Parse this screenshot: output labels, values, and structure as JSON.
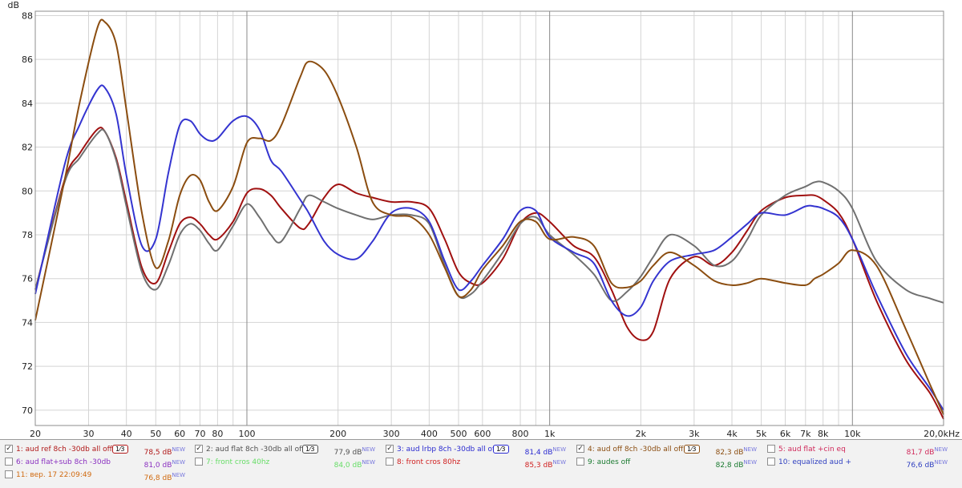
{
  "chart_data": {
    "type": "line",
    "ylabel": "dB",
    "x_scale": "log",
    "xlim": [
      20,
      20000
    ],
    "ylim": [
      69.3,
      88.2
    ],
    "grid": true,
    "y_ticks": [
      70,
      72,
      74,
      76,
      78,
      80,
      82,
      84,
      86,
      88
    ],
    "x_ticks": [
      {
        "value": 20,
        "label": "20"
      },
      {
        "value": 30,
        "label": "30"
      },
      {
        "value": 40,
        "label": "40"
      },
      {
        "value": 50,
        "label": "50"
      },
      {
        "value": 60,
        "label": "60"
      },
      {
        "value": 70,
        "label": "70"
      },
      {
        "value": 80,
        "label": "80"
      },
      {
        "value": 100,
        "label": "100"
      },
      {
        "value": 200,
        "label": "200"
      },
      {
        "value": 300,
        "label": "300"
      },
      {
        "value": 400,
        "label": "400"
      },
      {
        "value": 500,
        "label": "500"
      },
      {
        "value": 600,
        "label": "600"
      },
      {
        "value": 800,
        "label": "800"
      },
      {
        "value": 1000,
        "label": "1k"
      },
      {
        "value": 2000,
        "label": "2k"
      },
      {
        "value": 3000,
        "label": "3k"
      },
      {
        "value": 4000,
        "label": "4k"
      },
      {
        "value": 5000,
        "label": "5k"
      },
      {
        "value": 6000,
        "label": "6k"
      },
      {
        "value": 7000,
        "label": "7k"
      },
      {
        "value": 8000,
        "label": "8k"
      },
      {
        "value": 10000,
        "label": "10k"
      },
      {
        "value": 20000,
        "label": "20,0kHz"
      }
    ],
    "x_minor_ticks": [
      90,
      900,
      9000
    ],
    "x_major_lines": [
      100,
      1000,
      10000
    ],
    "series": [
      {
        "name": "1: aud ref 8ch -30db all off",
        "color": "#a01010",
        "x": [
          20,
          25,
          28,
          32,
          34,
          37,
          40,
          45,
          50,
          55,
          60,
          65,
          70,
          75,
          80,
          90,
          100,
          110,
          120,
          130,
          150,
          160,
          180,
          200,
          230,
          260,
          300,
          350,
          400,
          450,
          500,
          550,
          600,
          700,
          800,
          900,
          1000,
          1200,
          1400,
          1600,
          1800,
          2000,
          2200,
          2500,
          3000,
          3500,
          4000,
          4500,
          5000,
          6000,
          7000,
          7500,
          8000,
          9000,
          10000,
          12000,
          15000,
          18000,
          20000
        ],
        "y": [
          75.5,
          80.5,
          81.7,
          82.8,
          82.7,
          81.5,
          79.5,
          76.5,
          75.8,
          77.2,
          78.5,
          78.8,
          78.5,
          78.0,
          77.8,
          78.6,
          79.9,
          80.1,
          79.8,
          79.2,
          78.3,
          78.5,
          79.7,
          80.3,
          79.9,
          79.7,
          79.5,
          79.5,
          79.2,
          77.8,
          76.3,
          75.8,
          75.8,
          76.9,
          78.5,
          79.0,
          78.6,
          77.5,
          77.0,
          75.5,
          73.8,
          73.2,
          73.6,
          76.0,
          77.0,
          76.6,
          77.2,
          78.2,
          79.1,
          79.7,
          79.8,
          79.8,
          79.6,
          79.0,
          77.8,
          75.0,
          72.3,
          70.8,
          69.6
        ]
      },
      {
        "name": "2: aud flat 8ch -30db all off",
        "color": "#707070",
        "x": [
          20,
          25,
          28,
          32,
          34,
          37,
          40,
          45,
          50,
          55,
          60,
          65,
          70,
          75,
          80,
          90,
          100,
          110,
          120,
          130,
          150,
          160,
          180,
          200,
          230,
          260,
          300,
          350,
          400,
          450,
          500,
          550,
          600,
          700,
          800,
          900,
          1000,
          1200,
          1400,
          1600,
          1800,
          2000,
          2200,
          2500,
          3000,
          3500,
          4000,
          4500,
          5000,
          6000,
          7000,
          7500,
          8000,
          9000,
          10000,
          12000,
          15000,
          18000,
          20000
        ],
        "y": [
          75.5,
          80.4,
          81.5,
          82.6,
          82.7,
          81.4,
          79.3,
          76.3,
          75.5,
          76.6,
          78.0,
          78.5,
          78.2,
          77.6,
          77.3,
          78.4,
          79.4,
          78.8,
          78.0,
          77.7,
          79.2,
          79.8,
          79.5,
          79.2,
          78.9,
          78.7,
          78.9,
          78.9,
          78.5,
          76.6,
          75.2,
          75.3,
          75.9,
          77.2,
          78.5,
          78.8,
          78.0,
          77.1,
          76.2,
          75.0,
          75.4,
          76.1,
          77.0,
          78.0,
          77.5,
          76.6,
          76.8,
          77.8,
          78.9,
          79.8,
          80.2,
          80.4,
          80.4,
          80.0,
          79.2,
          76.8,
          75.5,
          75.1,
          74.9
        ]
      },
      {
        "name": "3: aud lrbp 8ch -30db all of",
        "color": "#3434d0",
        "x": [
          20,
          25,
          28,
          32,
          34,
          37,
          40,
          45,
          50,
          55,
          60,
          65,
          70,
          75,
          80,
          90,
          100,
          110,
          120,
          130,
          150,
          160,
          180,
          200,
          230,
          260,
          300,
          350,
          400,
          450,
          500,
          550,
          600,
          700,
          800,
          900,
          1000,
          1200,
          1400,
          1600,
          1800,
          2000,
          2200,
          2500,
          3000,
          3500,
          4000,
          4500,
          5000,
          6000,
          7000,
          7500,
          8000,
          9000,
          10000,
          12000,
          15000,
          18000,
          20000
        ],
        "y": [
          75.3,
          81.2,
          83.0,
          84.6,
          84.7,
          83.5,
          80.7,
          77.5,
          77.8,
          80.8,
          83.0,
          83.2,
          82.6,
          82.3,
          82.4,
          83.2,
          83.4,
          82.8,
          81.4,
          80.9,
          79.6,
          79.0,
          77.7,
          77.1,
          76.9,
          77.7,
          79.0,
          79.2,
          78.6,
          76.8,
          75.5,
          75.9,
          76.6,
          77.8,
          79.1,
          79.1,
          77.9,
          77.2,
          76.7,
          75.0,
          74.3,
          74.7,
          75.9,
          76.8,
          77.1,
          77.3,
          77.9,
          78.5,
          79.0,
          78.9,
          79.3,
          79.3,
          79.2,
          78.8,
          77.8,
          75.3,
          72.6,
          71.0,
          70.0
        ]
      },
      {
        "name": "4: aud off 8ch -30db all off",
        "color": "#8b4d10",
        "x": [
          20,
          25,
          28,
          32,
          34,
          37,
          40,
          45,
          50,
          55,
          60,
          65,
          70,
          75,
          80,
          90,
          100,
          110,
          120,
          130,
          150,
          160,
          180,
          200,
          230,
          260,
          300,
          350,
          400,
          450,
          500,
          550,
          600,
          700,
          800,
          900,
          1000,
          1200,
          1400,
          1600,
          1800,
          2000,
          2200,
          2500,
          3000,
          3500,
          4000,
          4500,
          5000,
          6000,
          7000,
          7500,
          8000,
          9000,
          10000,
          12000,
          15000,
          18000,
          20000
        ],
        "y": [
          74.1,
          80.5,
          84.0,
          87.4,
          87.7,
          86.7,
          83.7,
          79.0,
          76.5,
          77.7,
          79.8,
          80.7,
          80.5,
          79.5,
          79.1,
          80.2,
          82.2,
          82.4,
          82.3,
          83.0,
          85.2,
          85.9,
          85.5,
          84.3,
          82.0,
          79.5,
          78.9,
          78.8,
          78.0,
          76.5,
          75.2,
          75.5,
          76.4,
          77.5,
          78.6,
          78.6,
          77.8,
          77.9,
          77.5,
          75.8,
          75.6,
          75.9,
          76.6,
          77.2,
          76.6,
          75.9,
          75.7,
          75.8,
          76.0,
          75.8,
          75.7,
          76.0,
          76.2,
          76.7,
          77.3,
          76.6,
          73.7,
          71.2,
          69.8
        ]
      }
    ]
  },
  "plot": {
    "y_unit": "dB"
  },
  "legend": {
    "items": [
      {
        "label": "1: aud ref 8ch -30db all off",
        "checked": true,
        "smoothing": "1⁄3",
        "value": "78,5 dB",
        "new": "NEW",
        "color": "#b01818",
        "value_color": "#b01818"
      },
      {
        "label": "2: aud flat 8ch -30db all off",
        "checked": true,
        "smoothing": "1⁄3",
        "value": "77,9 dB",
        "new": "NEW",
        "color": "#505050",
        "value_color": "#505050"
      },
      {
        "label": "3: aud lrbp 8ch -30db all of",
        "checked": true,
        "smoothing": "1⁄3",
        "value": "81,4 dB",
        "new": "NEW",
        "color": "#2a2ad0",
        "value_color": "#2a2ad0"
      },
      {
        "label": "4: aud off 8ch -30db all off",
        "checked": true,
        "smoothing": "1⁄3",
        "value": "82,3 dB",
        "new": "NEW",
        "color": "#8b4d10",
        "value_color": "#8b4d10"
      },
      {
        "label": "5: aud flat +cin eq",
        "checked": false,
        "value": "81,7 dB",
        "new": "NEW",
        "color": "#d0285a",
        "value_color": "#d0285a"
      },
      {
        "label": "6: aud flat+sub  8ch -30db",
        "checked": false,
        "value": "81,0 dB",
        "new": "NEW",
        "color": "#8a30c0",
        "value_color": "#8a30c0"
      },
      {
        "label": "7: front cros 40hz",
        "checked": false,
        "value": "84,0 dB",
        "new": "NEW",
        "color": "#66dd66",
        "value_color": "#66dd66"
      },
      {
        "label": "8: front cros 80hz",
        "checked": false,
        "value": "85,3 dB",
        "new": "NEW",
        "color": "#d02020",
        "value_color": "#d02020"
      },
      {
        "label": "9: audes off",
        "checked": false,
        "value": "82,8 dB",
        "new": "NEW",
        "color": "#1a7a30",
        "value_color": "#1a7a30"
      },
      {
        "label": "10: equalized aud +",
        "checked": false,
        "value": "76,6 dB",
        "new": "NEW",
        "color": "#3040c0",
        "value_color": "#3040c0"
      },
      {
        "label": "11: вер. 17 22:09:49",
        "checked": false,
        "value": "76,8 dB",
        "new": "NEW",
        "color": "#d06a10",
        "value_color": "#d06a10"
      }
    ]
  }
}
